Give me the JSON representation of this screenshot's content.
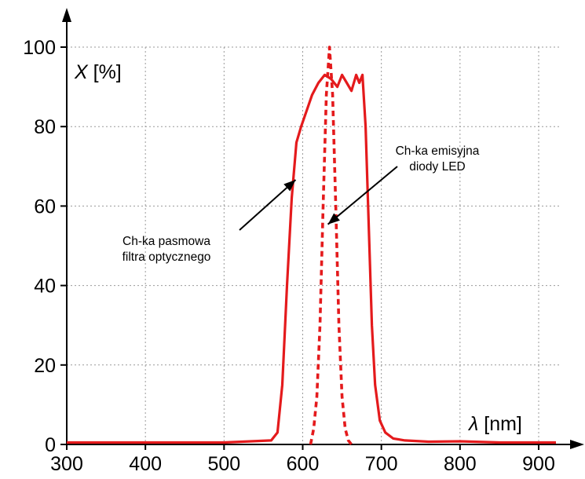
{
  "chart_data": {
    "type": "line",
    "ylabel": {
      "symbol": "X",
      "unit": "[%]"
    },
    "xlabel": {
      "symbol": "λ",
      "unit": "[nm]"
    },
    "xlim": [
      300,
      930
    ],
    "ylim": [
      0,
      100
    ],
    "x_ticks": [
      300,
      400,
      500,
      600,
      700,
      800,
      900
    ],
    "y_ticks": [
      0,
      20,
      40,
      60,
      80,
      100
    ],
    "grid": true,
    "grid_style": "dotted",
    "colors": {
      "series": "#e41a1c",
      "axis": "#000000",
      "grid": "#9a9a9a"
    },
    "series": [
      {
        "line_style": "solid",
        "x": [
          300,
          500,
          560,
          568,
          574,
          580,
          586,
          592,
          598,
          605,
          612,
          620,
          628,
          636,
          644,
          650,
          656,
          662,
          668,
          672,
          676,
          680,
          684,
          688,
          692,
          698,
          705,
          715,
          730,
          760,
          800,
          850,
          900,
          922
        ],
        "y": [
          0.5,
          0.5,
          1,
          3,
          15,
          40,
          62,
          76,
          80,
          84,
          88,
          91,
          93,
          92,
          90,
          93,
          91,
          89,
          93,
          91,
          93,
          80,
          55,
          30,
          15,
          6,
          3,
          1.5,
          1,
          0.7,
          0.8,
          0.5,
          0.5,
          0.5
        ]
      },
      {
        "line_style": "dashed",
        "x": [
          610,
          614,
          618,
          622,
          626,
          630,
          634,
          638,
          642,
          646,
          650,
          654,
          658,
          662
        ],
        "y": [
          0,
          4,
          12,
          30,
          60,
          88,
          100,
          88,
          60,
          30,
          12,
          4,
          1,
          0
        ]
      }
    ],
    "annotations": [
      {
        "lines": [
          "Ch-ka pasmowa",
          "filtra optycznego"
        ],
        "points_to": [
          593,
          67
        ]
      },
      {
        "lines": [
          "Ch-ka emisyjna",
          "diody LED"
        ],
        "points_to": [
          641,
          55
        ]
      }
    ]
  }
}
